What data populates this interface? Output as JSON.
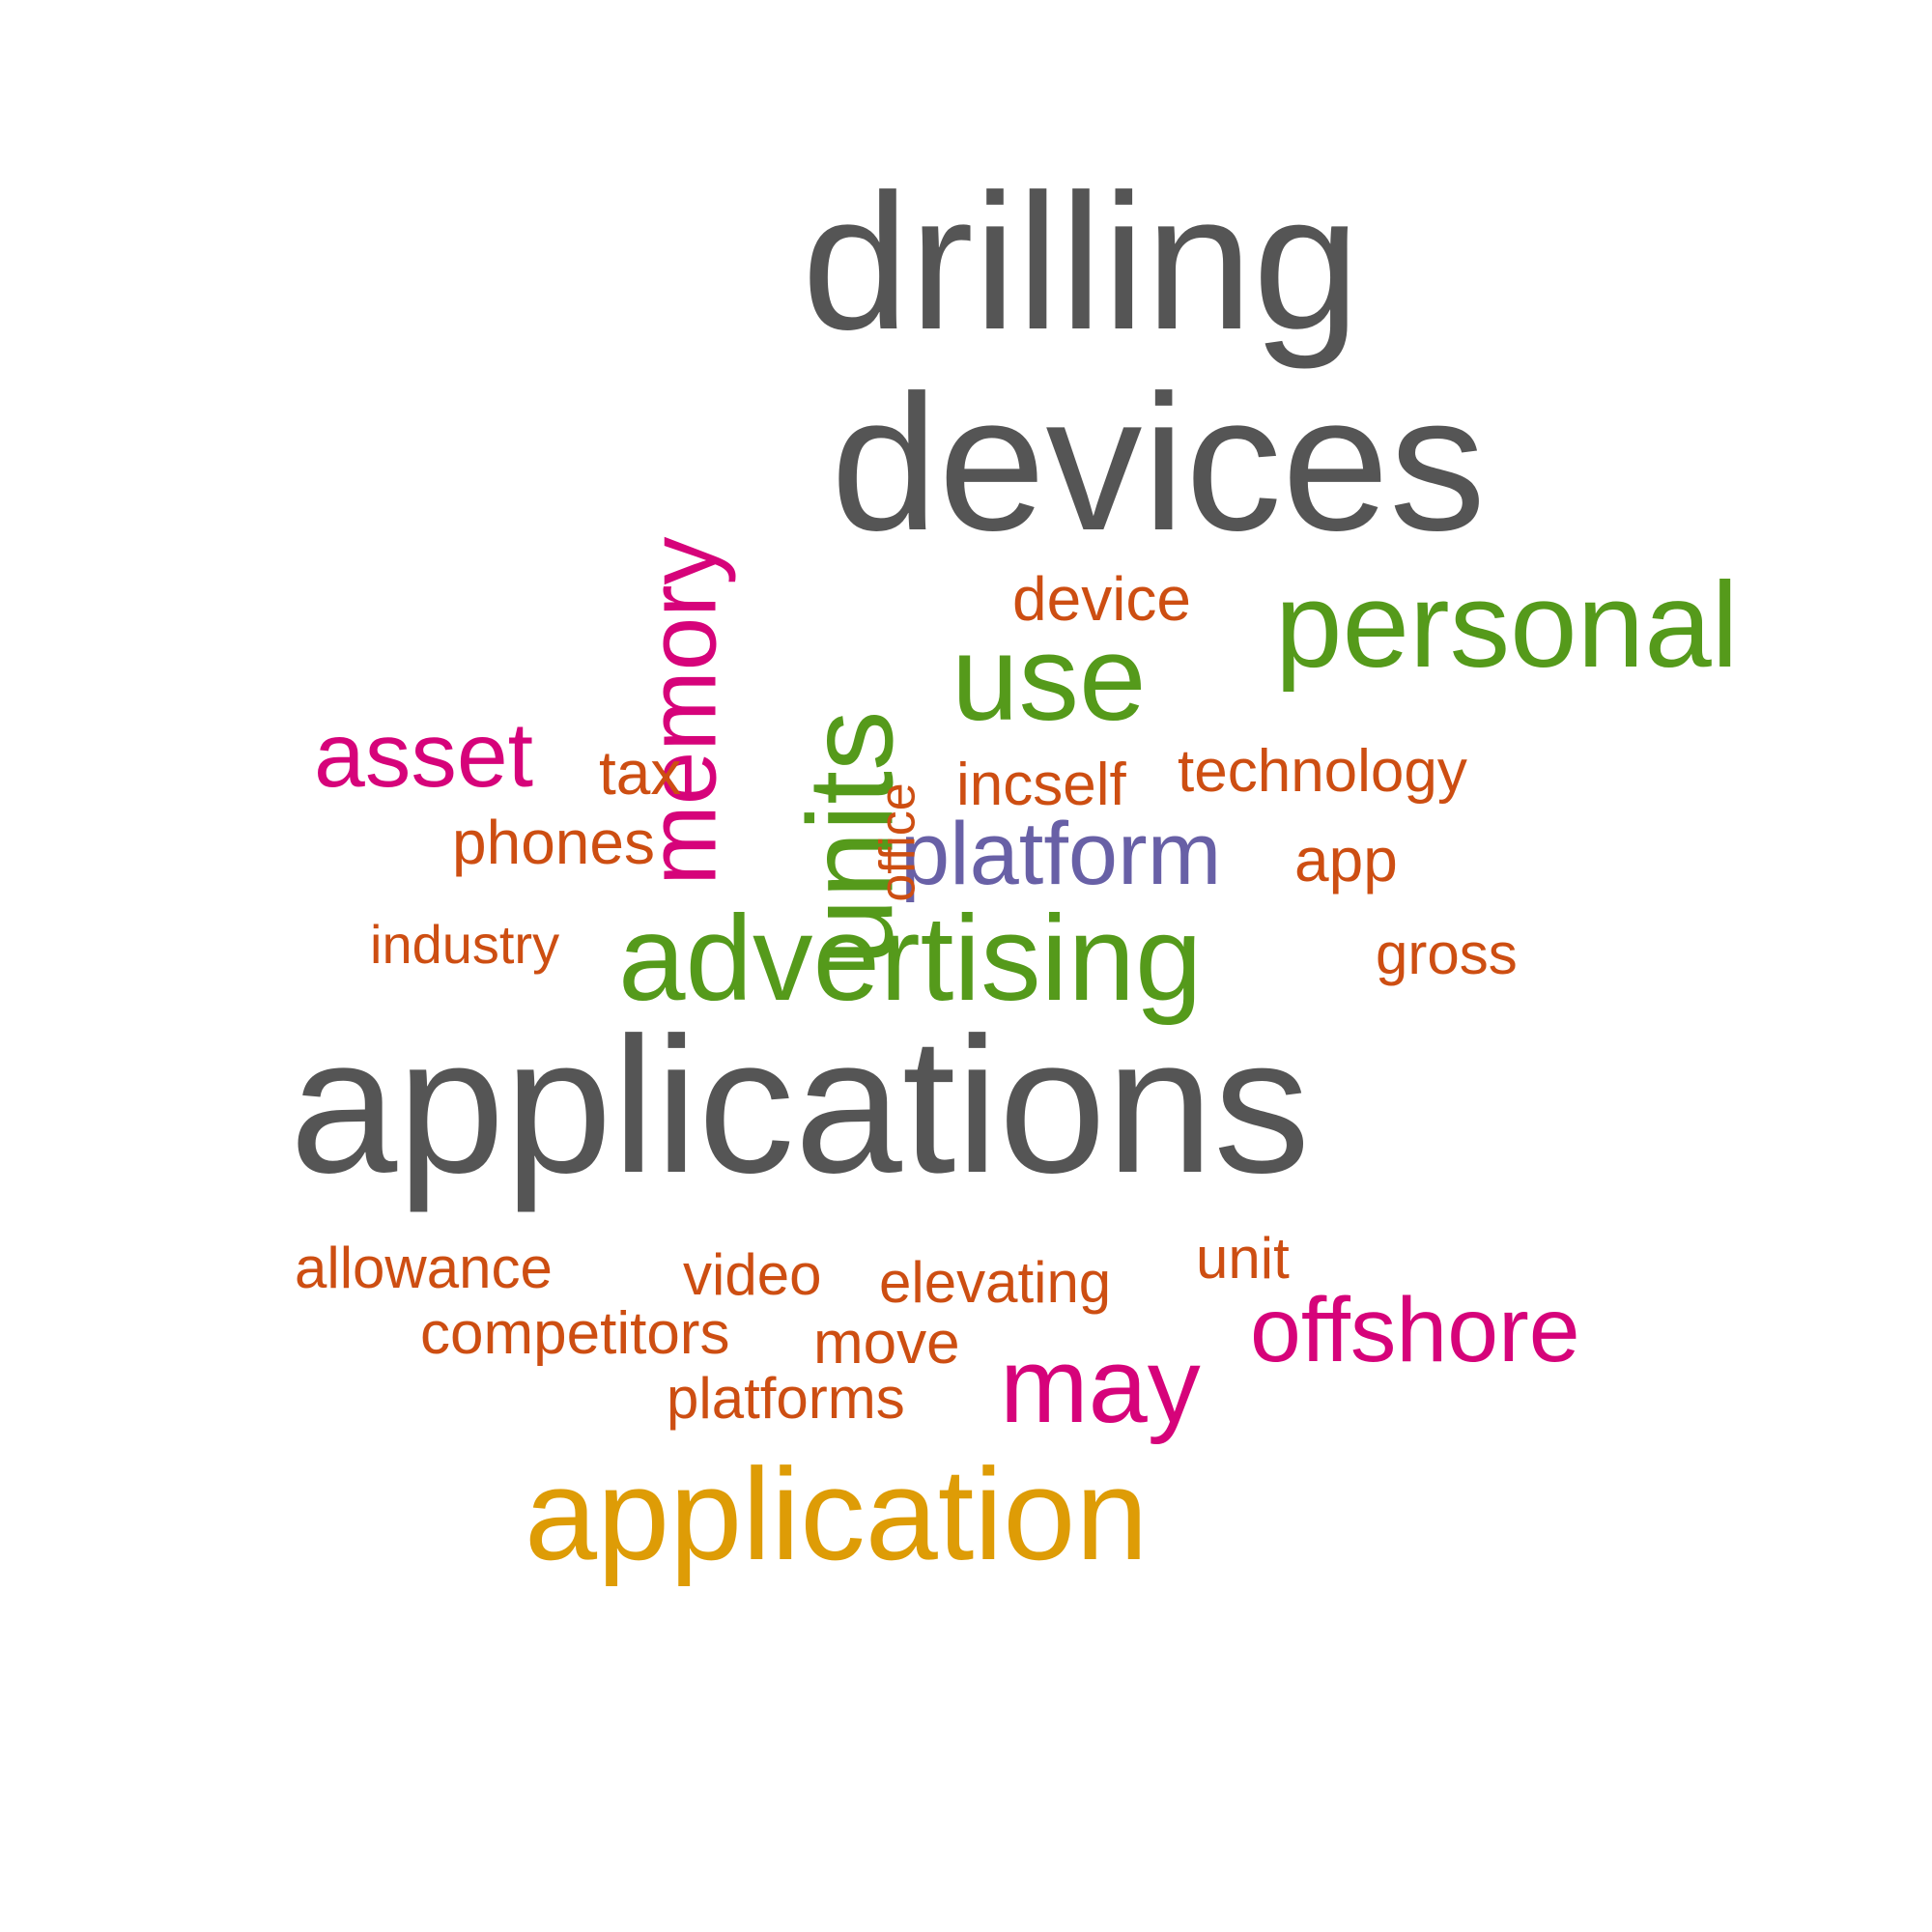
{
  "colors": {
    "gray": "#555555",
    "green": "#559a1b",
    "magenta": "#d6037a",
    "orange": "#cd4e12",
    "purple": "#6860a6",
    "gold": "#de9c06"
  },
  "words": [
    {
      "id": "drilling",
      "text": "drilling",
      "color": "gray",
      "weight": 1.0
    },
    {
      "id": "devices",
      "text": "devices",
      "color": "gray",
      "weight": 1.0
    },
    {
      "id": "applications",
      "text": "applications",
      "color": "gray",
      "weight": 1.0
    },
    {
      "id": "application",
      "text": "application",
      "color": "gold",
      "weight": 0.7
    },
    {
      "id": "personal",
      "text": "personal",
      "color": "green",
      "weight": 0.62
    },
    {
      "id": "advertising",
      "text": "advertising",
      "color": "green",
      "weight": 0.62
    },
    {
      "id": "use",
      "text": "use",
      "color": "green",
      "weight": 0.62
    },
    {
      "id": "units",
      "text": "units",
      "color": "green",
      "weight": 0.62
    },
    {
      "id": "memory",
      "text": "memory",
      "color": "magenta",
      "weight": 0.55
    },
    {
      "id": "may",
      "text": "may",
      "color": "magenta",
      "weight": 0.55
    },
    {
      "id": "offshore",
      "text": "offshore",
      "color": "magenta",
      "weight": 0.5
    },
    {
      "id": "asset",
      "text": "asset",
      "color": "magenta",
      "weight": 0.5
    },
    {
      "id": "platform",
      "text": "platform",
      "color": "purple",
      "weight": 0.5
    },
    {
      "id": "device",
      "text": "device",
      "color": "orange",
      "weight": 0.3
    },
    {
      "id": "tax",
      "text": "tax",
      "color": "orange",
      "weight": 0.3
    },
    {
      "id": "office",
      "text": "office",
      "color": "orange",
      "weight": 0.3
    },
    {
      "id": "incself",
      "text": "incself",
      "color": "orange",
      "weight": 0.3
    },
    {
      "id": "technology",
      "text": "technology",
      "color": "orange",
      "weight": 0.3
    },
    {
      "id": "phones",
      "text": "phones",
      "color": "orange",
      "weight": 0.3
    },
    {
      "id": "app",
      "text": "app",
      "color": "orange",
      "weight": 0.3
    },
    {
      "id": "industry",
      "text": "industry",
      "color": "orange",
      "weight": 0.3
    },
    {
      "id": "gross",
      "text": "gross",
      "color": "orange",
      "weight": 0.3
    },
    {
      "id": "allowance",
      "text": "allowance",
      "color": "orange",
      "weight": 0.3
    },
    {
      "id": "video",
      "text": "video",
      "color": "orange",
      "weight": 0.3
    },
    {
      "id": "elevating",
      "text": "elevating",
      "color": "orange",
      "weight": 0.3
    },
    {
      "id": "unit",
      "text": "unit",
      "color": "orange",
      "weight": 0.3
    },
    {
      "id": "competitors",
      "text": "competitors",
      "color": "orange",
      "weight": 0.3
    },
    {
      "id": "move",
      "text": "move",
      "color": "orange",
      "weight": 0.3
    },
    {
      "id": "platforms",
      "text": "platforms",
      "color": "orange",
      "weight": 0.3
    }
  ]
}
